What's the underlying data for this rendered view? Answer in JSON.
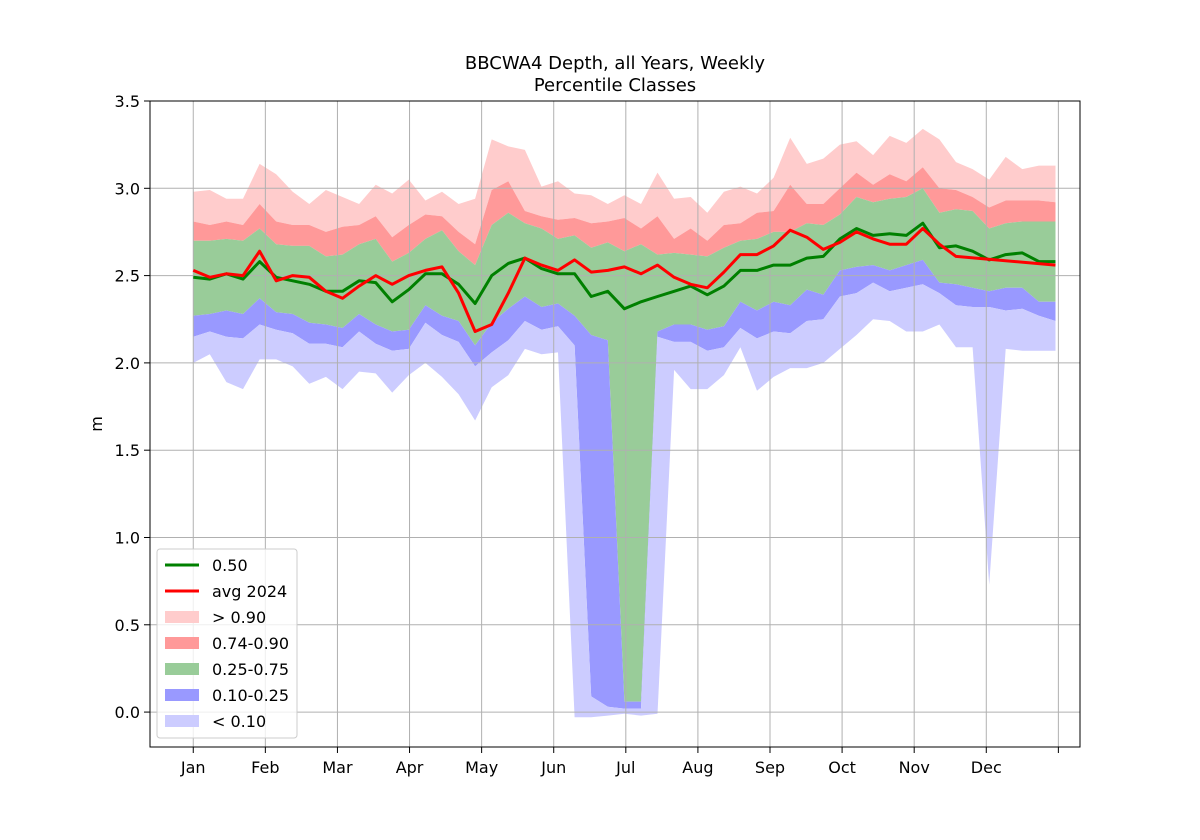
{
  "chart_data": {
    "type": "area",
    "title": [
      "BBCWA4 Depth, all Years, Weekly",
      "Percentile Classes"
    ],
    "xlabel": "",
    "ylabel": "m",
    "ylim": [
      -0.2,
      3.5
    ],
    "yticks": [
      "0.0",
      "0.5",
      "1.0",
      "1.5",
      "2.0",
      "2.5",
      "3.0",
      "3.5"
    ],
    "xlim": [
      -0.6,
      12.3
    ],
    "xticks": [
      "Jan",
      "Feb",
      "Mar",
      "Apr",
      "May",
      "Jun",
      "Jul",
      "Aug",
      "Sep",
      "Oct",
      "Nov",
      "Dec",
      ""
    ],
    "grid": true,
    "legend_placement": "lower-left",
    "legend": [
      "0.50",
      "avg 2024",
      "> 0.90",
      "0.74-0.90",
      "0.25-0.75",
      "0.10-0.25",
      "< 0.10"
    ],
    "colors": {
      "median": "#008000",
      "avg2024": "#ff0000",
      "band_gt90": "#ffcccc",
      "band_74_90": "#ff9999",
      "band_25_75": "#99cc99",
      "band_10_25": "#9999ff",
      "band_lt10": "#ccccff"
    },
    "x_weeks": [
      0,
      0.23,
      0.46,
      0.69,
      0.92,
      1.15,
      1.38,
      1.61,
      1.84,
      2.07,
      2.3,
      2.53,
      2.76,
      2.99,
      3.22,
      3.45,
      3.68,
      3.91,
      4.14,
      4.37,
      4.6,
      4.83,
      5.06,
      5.29,
      5.52,
      5.75,
      5.98,
      6.21,
      6.44,
      6.67,
      6.9,
      7.13,
      7.36,
      7.59,
      7.82,
      8.05,
      8.28,
      8.51,
      8.74,
      8.97,
      9.2,
      9.43,
      9.66,
      9.89,
      10.12,
      10.35,
      10.58,
      10.81,
      11.04,
      11.27,
      11.5,
      11.73,
      11.96
    ],
    "percentiles": {
      "min": [
        2.0,
        2.05,
        1.89,
        1.85,
        2.02,
        2.02,
        1.98,
        1.88,
        1.92,
        1.85,
        1.95,
        1.94,
        1.83,
        1.93,
        2.0,
        1.92,
        1.82,
        1.67,
        1.86,
        1.93,
        2.08,
        2.05,
        2.06,
        -0.03,
        -0.03,
        -0.02,
        -0.01,
        -0.02,
        -0.01,
        1.96,
        1.85,
        1.85,
        1.93,
        2.09,
        1.84,
        1.92,
        1.97,
        1.97,
        2.0,
        2.08,
        2.16,
        2.25,
        2.24,
        2.18,
        2.18,
        2.22,
        2.09,
        2.09,
        0.73,
        2.08,
        2.07,
        2.07,
        2.07
      ],
      "p10": [
        2.15,
        2.18,
        2.15,
        2.14,
        2.22,
        2.19,
        2.17,
        2.11,
        2.11,
        2.09,
        2.18,
        2.11,
        2.07,
        2.08,
        2.23,
        2.16,
        2.12,
        1.98,
        2.06,
        2.13,
        2.24,
        2.19,
        2.21,
        2.1,
        0.09,
        0.03,
        0.02,
        0.02,
        2.15,
        2.12,
        2.12,
        2.07,
        2.09,
        2.2,
        2.14,
        2.18,
        2.17,
        2.24,
        2.25,
        2.38,
        2.4,
        2.46,
        2.41,
        2.43,
        2.45,
        2.4,
        2.33,
        2.32,
        2.32,
        2.3,
        2.31,
        2.27,
        2.24
      ],
      "p25": [
        2.27,
        2.28,
        2.3,
        2.28,
        2.37,
        2.29,
        2.28,
        2.23,
        2.22,
        2.2,
        2.28,
        2.22,
        2.18,
        2.19,
        2.33,
        2.27,
        2.24,
        2.1,
        2.23,
        2.31,
        2.38,
        2.32,
        2.34,
        2.27,
        2.16,
        2.13,
        0.06,
        0.06,
        2.18,
        2.22,
        2.22,
        2.19,
        2.21,
        2.35,
        2.3,
        2.35,
        2.33,
        2.42,
        2.39,
        2.53,
        2.55,
        2.56,
        2.53,
        2.56,
        2.59,
        2.46,
        2.45,
        2.43,
        2.41,
        2.43,
        2.43,
        2.35,
        2.35
      ],
      "p50": [
        2.49,
        2.48,
        2.51,
        2.48,
        2.58,
        2.49,
        2.47,
        2.45,
        2.41,
        2.41,
        2.47,
        2.46,
        2.35,
        2.42,
        2.51,
        2.51,
        2.45,
        2.34,
        2.5,
        2.57,
        2.6,
        2.54,
        2.51,
        2.51,
        2.38,
        2.41,
        2.31,
        2.35,
        2.38,
        2.41,
        2.44,
        2.39,
        2.44,
        2.53,
        2.53,
        2.56,
        2.56,
        2.6,
        2.61,
        2.71,
        2.77,
        2.73,
        2.74,
        2.73,
        2.8,
        2.66,
        2.67,
        2.64,
        2.59,
        2.62,
        2.63,
        2.58,
        2.58
      ],
      "p75": [
        2.7,
        2.7,
        2.71,
        2.7,
        2.77,
        2.68,
        2.67,
        2.67,
        2.61,
        2.62,
        2.68,
        2.71,
        2.58,
        2.63,
        2.71,
        2.76,
        2.64,
        2.56,
        2.79,
        2.86,
        2.8,
        2.77,
        2.71,
        2.73,
        2.66,
        2.69,
        2.64,
        2.68,
        2.62,
        2.63,
        2.62,
        2.61,
        2.66,
        2.7,
        2.71,
        2.75,
        2.75,
        2.8,
        2.79,
        2.85,
        2.95,
        2.92,
        2.94,
        2.95,
        3.0,
        2.86,
        2.88,
        2.87,
        2.77,
        2.8,
        2.81,
        2.81,
        2.81
      ],
      "p90": [
        2.81,
        2.79,
        2.81,
        2.79,
        2.91,
        2.81,
        2.79,
        2.79,
        2.75,
        2.78,
        2.79,
        2.84,
        2.72,
        2.79,
        2.85,
        2.84,
        2.75,
        2.68,
        2.99,
        3.04,
        2.87,
        2.84,
        2.82,
        2.83,
        2.8,
        2.81,
        2.83,
        2.77,
        2.84,
        2.71,
        2.77,
        2.7,
        2.79,
        2.8,
        2.86,
        2.87,
        3.02,
        2.91,
        2.91,
        3.0,
        3.09,
        3.02,
        3.08,
        3.04,
        3.12,
        3.0,
        2.99,
        2.95,
        2.89,
        2.93,
        2.93,
        2.93,
        2.92
      ],
      "max": [
        2.98,
        2.99,
        2.94,
        2.94,
        3.14,
        3.08,
        2.98,
        2.91,
        2.99,
        2.95,
        2.91,
        3.02,
        2.97,
        3.05,
        2.93,
        2.98,
        2.91,
        2.94,
        3.28,
        3.24,
        3.22,
        3.01,
        3.04,
        2.97,
        2.96,
        2.91,
        2.96,
        2.91,
        3.09,
        2.94,
        2.95,
        2.86,
        2.98,
        3.01,
        2.97,
        3.06,
        3.29,
        3.14,
        3.17,
        3.25,
        3.27,
        3.19,
        3.3,
        3.26,
        3.34,
        3.28,
        3.15,
        3.11,
        3.05,
        3.18,
        3.11,
        3.13,
        3.13
      ]
    },
    "avg_2024_weeks": [
      0,
      0.23,
      0.46,
      0.69,
      0.92,
      1.15,
      1.38,
      1.61,
      1.84,
      2.07,
      2.3,
      2.53,
      2.76,
      2.99,
      3.22,
      3.45,
      3.68,
      3.91,
      4.14,
      4.37,
      4.6,
      4.83,
      5.06,
      5.29,
      5.52,
      5.75,
      5.98,
      6.21,
      6.44,
      6.67,
      6.9,
      7.13,
      7.36,
      7.59,
      7.82,
      8.05,
      8.28,
      8.51,
      8.74,
      8.97,
      9.2,
      9.43,
      9.66,
      9.89,
      10.12,
      10.35,
      10.58,
      11.96
    ],
    "avg_2024": [
      2.53,
      2.49,
      2.51,
      2.5,
      2.64,
      2.47,
      2.5,
      2.49,
      2.41,
      2.37,
      2.44,
      2.5,
      2.45,
      2.5,
      2.53,
      2.55,
      2.4,
      2.18,
      2.22,
      2.4,
      2.6,
      2.56,
      2.53,
      2.59,
      2.52,
      2.53,
      2.55,
      2.51,
      2.56,
      2.49,
      2.45,
      2.43,
      2.52,
      2.62,
      2.62,
      2.67,
      2.76,
      2.72,
      2.65,
      2.69,
      2.75,
      2.71,
      2.68,
      2.68,
      2.77,
      2.68,
      2.61,
      2.56
    ]
  }
}
